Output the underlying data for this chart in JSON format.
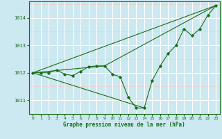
{
  "background_color": "#cce8f0",
  "grid_color_major": "#ffffff",
  "grid_color_minor": "#f0cccc",
  "line_color": "#1a6e1a",
  "marker_color": "#1a6e1a",
  "xlabel": "Graphe pression niveau de la mer (hPa)",
  "xlim": [
    -0.5,
    23.5
  ],
  "ylim": [
    1010.5,
    1014.6
  ],
  "yticks": [
    1011,
    1012,
    1013,
    1014
  ],
  "xticks": [
    0,
    1,
    2,
    3,
    4,
    5,
    6,
    7,
    8,
    9,
    10,
    11,
    12,
    13,
    14,
    15,
    16,
    17,
    18,
    19,
    20,
    21,
    22,
    23
  ],
  "main_x": [
    0,
    1,
    2,
    3,
    4,
    5,
    6,
    7,
    8,
    9,
    10,
    11,
    12,
    13,
    14,
    15,
    16,
    17,
    18,
    19,
    20,
    21,
    22,
    23
  ],
  "main_y": [
    1012.0,
    1012.0,
    1012.0,
    1012.1,
    1011.95,
    1011.9,
    1012.05,
    1012.22,
    1012.25,
    1012.25,
    1011.95,
    1011.85,
    1011.1,
    1010.72,
    1010.72,
    1011.72,
    1012.25,
    1012.7,
    1013.0,
    1013.6,
    1013.35,
    1013.6,
    1014.1,
    1014.45
  ],
  "straight_lines": [
    {
      "x": [
        0,
        23
      ],
      "y": [
        1012.0,
        1014.45
      ]
    },
    {
      "x": [
        0,
        9
      ],
      "y": [
        1012.0,
        1012.25
      ]
    },
    {
      "x": [
        9,
        23
      ],
      "y": [
        1012.25,
        1014.45
      ]
    },
    {
      "x": [
        0,
        14
      ],
      "y": [
        1012.0,
        1010.72
      ]
    }
  ]
}
